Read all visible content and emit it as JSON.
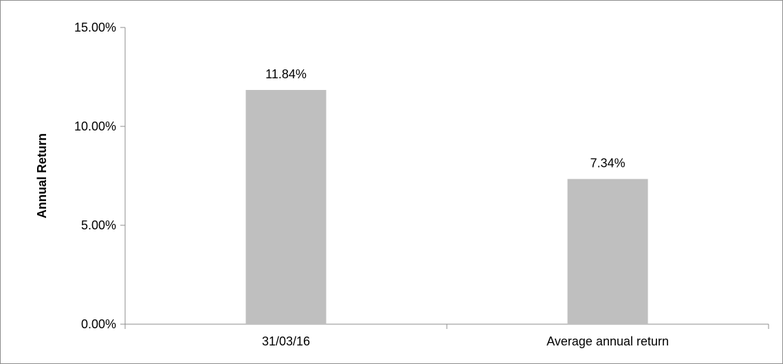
{
  "chart_data": {
    "type": "bar",
    "title": "",
    "xlabel": "",
    "ylabel": "Annual Return",
    "categories": [
      "31/03/16",
      "Average annual return"
    ],
    "values": [
      11.84,
      7.34
    ],
    "data_labels": [
      "11.84%",
      "7.34%"
    ],
    "ylim": [
      0,
      15
    ],
    "yticks": [
      0,
      5,
      10,
      15
    ],
    "ytick_labels": [
      "0.00%",
      "5.00%",
      "10.00%",
      "15.00%"
    ],
    "grid": false,
    "legend": "none",
    "bar_color": "#bfbfbf",
    "axis_color": "#8c8c8c"
  }
}
